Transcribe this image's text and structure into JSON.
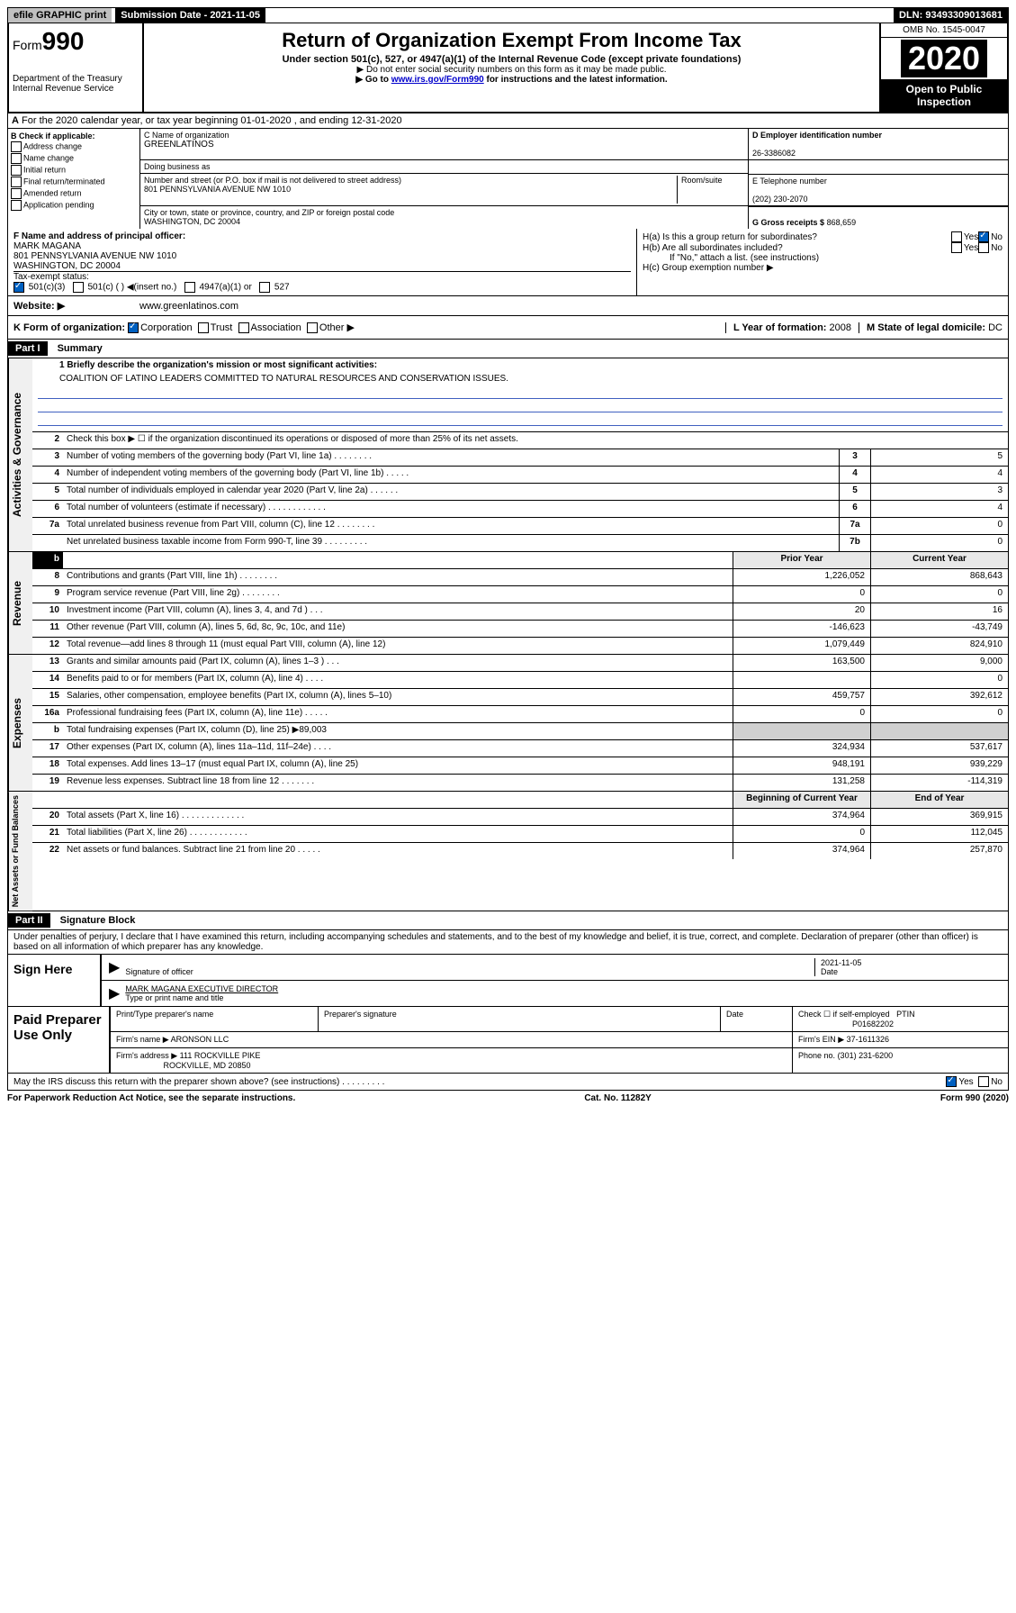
{
  "topbar": {
    "efile": "efile GRAPHIC print",
    "sub_date": "Submission Date - 2021-11-05",
    "dln": "DLN: 93493309013681"
  },
  "header": {
    "form_word": "Form",
    "form_num": "990",
    "dept": "Department of the Treasury\nInternal Revenue Service",
    "title": "Return of Organization Exempt From Income Tax",
    "subtitle": "Under section 501(c), 527, or 4947(a)(1) of the Internal Revenue Code (except private foundations)",
    "note1": "▶ Do not enter social security numbers on this form as it may be made public.",
    "note2_pre": "▶ Go to ",
    "note2_link": "www.irs.gov/Form990",
    "note2_post": " for instructions and the latest information.",
    "omb": "OMB No. 1545-0047",
    "year": "2020",
    "open": "Open to Public Inspection"
  },
  "line_a": "For the 2020 calendar year, or tax year beginning 01-01-2020    , and ending 12-31-2020",
  "box_b": {
    "label": "B Check if applicable:",
    "items": [
      "Address change",
      "Name change",
      "Initial return",
      "Final return/terminated",
      "Amended return",
      "Application pending"
    ]
  },
  "box_c": {
    "name_label": "C Name of organization",
    "name": "GREENLATINOS",
    "dba_label": "Doing business as",
    "addr_label": "Number and street (or P.O. box if mail is not delivered to street address)",
    "room_label": "Room/suite",
    "addr": "801 PENNSYLVANIA AVENUE NW 1010",
    "city_label": "City or town, state or province, country, and ZIP or foreign postal code",
    "city": "WASHINGTON, DC  20004"
  },
  "box_d": {
    "label": "D Employer identification number",
    "value": "26-3386082"
  },
  "box_e": {
    "label": "E Telephone number",
    "value": "(202) 230-2070"
  },
  "box_g": {
    "label": "G Gross receipts $",
    "value": "868,659"
  },
  "box_f": {
    "label": "F  Name and address of principal officer:",
    "name": "MARK MAGANA",
    "addr": "801 PENNSYLVANIA AVENUE NW 1010\nWASHINGTON, DC  20004"
  },
  "box_h": {
    "a": "H(a)  Is this a group return for subordinates?",
    "b": "H(b)  Are all subordinates included?",
    "b_note": "If \"No,\" attach a list. (see instructions)",
    "c": "H(c)  Group exemption number ▶"
  },
  "tax_status": {
    "label": "Tax-exempt status:",
    "opts": [
      "501(c)(3)",
      "501(c) (  ) ◀(insert no.)",
      "4947(a)(1) or",
      "527"
    ]
  },
  "website": {
    "label": "Website: ▶",
    "value": "www.greenlatinos.com"
  },
  "line_k": "K Form of organization:",
  "k_opts": [
    "Corporation",
    "Trust",
    "Association",
    "Other ▶"
  ],
  "line_l": {
    "label": "L Year of formation:",
    "value": "2008"
  },
  "line_m": {
    "label": "M State of legal domicile:",
    "value": "DC"
  },
  "part1": {
    "tag": "Part I",
    "title": "Summary"
  },
  "mission": {
    "label": "1  Briefly describe the organization's mission or most significant activities:",
    "text": "COALITION OF LATINO LEADERS COMMITTED TO NATURAL RESOURCES AND CONSERVATION ISSUES."
  },
  "line2": "Check this box ▶ ☐  if the organization discontinued its operations or disposed of more than 25% of its net assets.",
  "governance_rows": [
    {
      "n": "3",
      "d": "Number of voting members of the governing body (Part VI, line 1a)  .   .   .   .   .   .   .   .",
      "b": "3",
      "v": "5"
    },
    {
      "n": "4",
      "d": "Number of independent voting members of the governing body (Part VI, line 1b)  .   .   .   .   .",
      "b": "4",
      "v": "4"
    },
    {
      "n": "5",
      "d": "Total number of individuals employed in calendar year 2020 (Part V, line 2a)  .   .   .   .   .   .",
      "b": "5",
      "v": "3"
    },
    {
      "n": "6",
      "d": "Total number of volunteers (estimate if necessary)  .   .   .   .   .   .   .   .   .   .   .   .",
      "b": "6",
      "v": "4"
    },
    {
      "n": "7a",
      "d": "Total unrelated business revenue from Part VIII, column (C), line 12  .   .   .   .   .   .   .   .",
      "b": "7a",
      "v": "0"
    },
    {
      "n": "",
      "d": "Net unrelated business taxable income from Form 990-T, line 39  .   .   .   .   .   .   .   .   .",
      "b": "7b",
      "v": "0"
    }
  ],
  "yr_hdr": {
    "prior": "Prior Year",
    "current": "Current Year"
  },
  "revenue_rows": [
    {
      "n": "8",
      "d": "Contributions and grants (Part VIII, line 1h)  .   .   .   .   .   .   .   .",
      "p": "1,226,052",
      "c": "868,643"
    },
    {
      "n": "9",
      "d": "Program service revenue (Part VIII, line 2g)  .   .   .   .   .   .   .   .",
      "p": "0",
      "c": "0"
    },
    {
      "n": "10",
      "d": "Investment income (Part VIII, column (A), lines 3, 4, and 7d )  .   .   .",
      "p": "20",
      "c": "16"
    },
    {
      "n": "11",
      "d": "Other revenue (Part VIII, column (A), lines 5, 6d, 8c, 9c, 10c, and 11e)",
      "p": "-146,623",
      "c": "-43,749"
    },
    {
      "n": "12",
      "d": "Total revenue—add lines 8 through 11 (must equal Part VIII, column (A), line 12)",
      "p": "1,079,449",
      "c": "824,910"
    }
  ],
  "expense_rows": [
    {
      "n": "13",
      "d": "Grants and similar amounts paid (Part IX, column (A), lines 1–3 )  .   .   .",
      "p": "163,500",
      "c": "9,000"
    },
    {
      "n": "14",
      "d": "Benefits paid to or for members (Part IX, column (A), line 4)  .   .   .   .",
      "p": "",
      "c": "0"
    },
    {
      "n": "15",
      "d": "Salaries, other compensation, employee benefits (Part IX, column (A), lines 5–10)",
      "p": "459,757",
      "c": "392,612"
    },
    {
      "n": "16a",
      "d": "Professional fundraising fees (Part IX, column (A), line 11e)  .   .   .   .   .",
      "p": "0",
      "c": "0"
    },
    {
      "n": "b",
      "d": "Total fundraising expenses (Part IX, column (D), line 25) ▶89,003",
      "p": "shade",
      "c": "shade"
    },
    {
      "n": "17",
      "d": "Other expenses (Part IX, column (A), lines 11a–11d, 11f–24e)  .   .   .   .",
      "p": "324,934",
      "c": "537,617"
    },
    {
      "n": "18",
      "d": "Total expenses. Add lines 13–17 (must equal Part IX, column (A), line 25)",
      "p": "948,191",
      "c": "939,229"
    },
    {
      "n": "19",
      "d": "Revenue less expenses. Subtract line 18 from line 12  .   .   .   .   .   .   .",
      "p": "131,258",
      "c": "-114,319"
    }
  ],
  "net_hdr": {
    "begin": "Beginning of Current Year",
    "end": "End of Year"
  },
  "net_rows": [
    {
      "n": "20",
      "d": "Total assets (Part X, line 16)  .   .   .   .   .   .   .   .   .   .   .   .   .",
      "p": "374,964",
      "c": "369,915"
    },
    {
      "n": "21",
      "d": "Total liabilities (Part X, line 26)  .   .   .   .   .   .   .   .   .   .   .   .",
      "p": "0",
      "c": "112,045"
    },
    {
      "n": "22",
      "d": "Net assets or fund balances. Subtract line 21 from line 20  .   .   .   .   .",
      "p": "374,964",
      "c": "257,870"
    }
  ],
  "side_labels": {
    "gov": "Activities & Governance",
    "rev": "Revenue",
    "exp": "Expenses",
    "net": "Net Assets or Fund Balances"
  },
  "part2": {
    "tag": "Part II",
    "title": "Signature Block"
  },
  "perjury": "Under penalties of perjury, I declare that I have examined this return, including accompanying schedules and statements, and to the best of my knowledge and belief, it is true, correct, and complete. Declaration of preparer (other than officer) is based on all information of which preparer has any knowledge.",
  "sign": {
    "label": "Sign Here",
    "sig_of_officer": "Signature of officer",
    "date_label": "Date",
    "date": "2021-11-05",
    "name": "MARK MAGANA  EXECUTIVE DIRECTOR",
    "type_label": "Type or print name and title"
  },
  "paid": {
    "label": "Paid Preparer Use Only",
    "print_label": "Print/Type preparer's name",
    "sig_label": "Preparer's signature",
    "date_label": "Date",
    "check_label": "Check ☐ if self-employed",
    "ptin_label": "PTIN",
    "ptin": "P01682202",
    "firm_name_label": "Firm's name    ▶",
    "firm_name": "ARONSON LLC",
    "firm_ein_label": "Firm's EIN ▶",
    "firm_ein": "37-1611326",
    "firm_addr_label": "Firm's address ▶",
    "firm_addr": "111 ROCKVILLE PIKE",
    "firm_city": "ROCKVILLE, MD  20850",
    "phone_label": "Phone no.",
    "phone": "(301) 231-6200"
  },
  "discuss": "May the IRS discuss this return with the preparer shown above? (see instructions)   .   .   .   .   .   .   .   .   .",
  "footer": {
    "pra": "For Paperwork Reduction Act Notice, see the separate instructions.",
    "cat": "Cat. No. 11282Y",
    "form": "Form 990 (2020)"
  }
}
